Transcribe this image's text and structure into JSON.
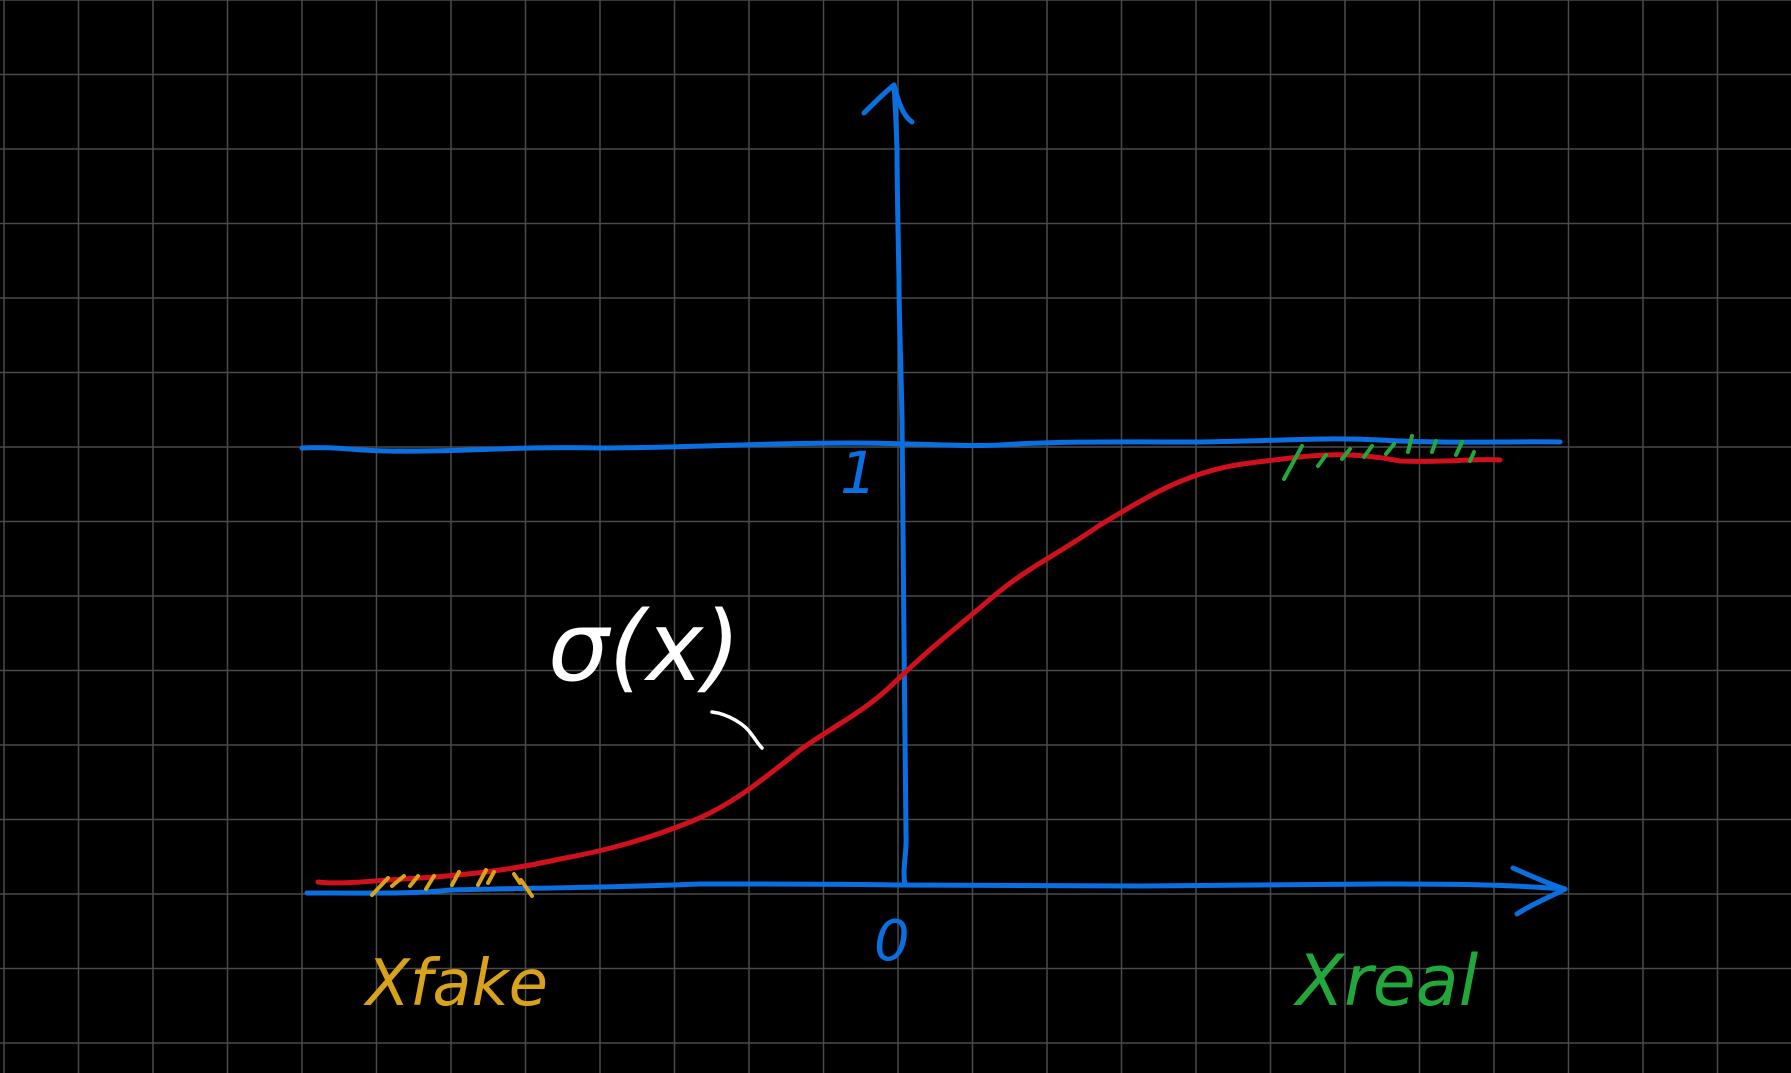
{
  "canvas": {
    "background": "#000000",
    "grid_color": "#4a4a4a"
  },
  "colors": {
    "axis": "#0a6fe0",
    "curve": "#d0101c",
    "fake": "#d9a21b",
    "real": "#22a83a",
    "annotation": "#ffffff"
  },
  "labels": {
    "y_top": "1",
    "origin": "0",
    "curve_label": "σ(x)",
    "fake_label": "Xfake",
    "real_label": "Xreal"
  },
  "chart_data": {
    "type": "line",
    "function": "sigmoid",
    "y_levels": [
      0,
      1
    ],
    "series": [
      {
        "name": "σ(x)",
        "color": "#d0101c"
      }
    ],
    "annotations": [
      {
        "text": "Xfake",
        "side": "left",
        "color": "#d9a21b"
      },
      {
        "text": "Xreal",
        "side": "right",
        "color": "#22a83a"
      }
    ]
  }
}
